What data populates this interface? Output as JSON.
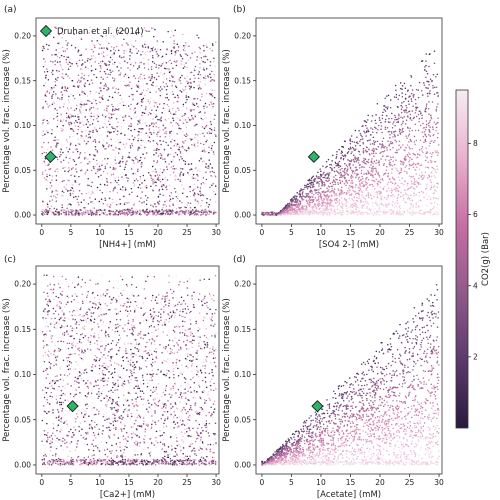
{
  "legend": {
    "label": "Druhan et al. (2014)",
    "marker_color": "#2db36a"
  },
  "colorbar": {
    "label": "CO2(g) (Bar)",
    "ticks": [
      2,
      4,
      6,
      8
    ],
    "range": [
      0,
      9.5
    ],
    "colormap": [
      "#2b1a3d",
      "#5b3a6b",
      "#8f5a8a",
      "#c56fa3",
      "#e9b2cf",
      "#f7ecf2"
    ]
  },
  "chart_data": [
    {
      "type": "scatter",
      "panel": "(a)",
      "xlabel": "[NH4+] (mM)",
      "ylabel": "Percentage vol. frac. increase (%)",
      "xlim": [
        -1,
        30.5
      ],
      "ylim": [
        -0.01,
        0.22
      ],
      "xticks": [
        0,
        5,
        10,
        15,
        20,
        25,
        30
      ],
      "yticks": [
        "0.00",
        "0.05",
        "0.10",
        "0.15",
        "0.20"
      ],
      "pattern": "uniform",
      "reference_point": {
        "x": 1.5,
        "y": 0.065,
        "name": "Druhan et al. (2014)"
      }
    },
    {
      "type": "scatter",
      "panel": "(b)",
      "xlabel": "[SO4 2-] (mM)",
      "ylabel": "Percentage vol. frac. increase (%)",
      "xlim": [
        -1,
        30.5
      ],
      "ylim": [
        -0.01,
        0.22
      ],
      "xticks": [
        0,
        5,
        10,
        15,
        20,
        25,
        30
      ],
      "yticks": [
        "0.00",
        "0.05",
        "0.10",
        "0.15",
        "0.20"
      ],
      "pattern": "wedge",
      "wedge_start": 2.5,
      "wedge_slope": 0.0073,
      "reference_point": {
        "x": 8.8,
        "y": 0.065,
        "name": "Druhan et al. (2014)"
      }
    },
    {
      "type": "scatter",
      "panel": "(c)",
      "xlabel": "[Ca2+] (mM)",
      "ylabel": "Percentage vol. frac. increase (%)",
      "xlim": [
        -1,
        30.5
      ],
      "ylim": [
        -0.01,
        0.22
      ],
      "xticks": [
        0,
        5,
        10,
        15,
        20,
        25,
        30
      ],
      "yticks": [
        "0.00",
        "0.05",
        "0.10",
        "0.15",
        "0.20"
      ],
      "pattern": "uniform",
      "reference_point": {
        "x": 5.3,
        "y": 0.065,
        "name": "Druhan et al. (2014)"
      }
    },
    {
      "type": "scatter",
      "panel": "(d)",
      "xlabel": "[Acetate] (mM)",
      "ylabel": "Percentage vol. frac. increase (%)",
      "xlim": [
        -1,
        30.5
      ],
      "ylim": [
        -0.01,
        0.22
      ],
      "xticks": [
        0,
        5,
        10,
        15,
        20,
        25,
        30
      ],
      "yticks": [
        "0.00",
        "0.05",
        "0.10",
        "0.15",
        "0.20"
      ],
      "pattern": "wedge",
      "wedge_start": 0.0,
      "wedge_slope": 0.0068,
      "reference_point": {
        "x": 9.4,
        "y": 0.065,
        "name": "Druhan et al. (2014)"
      }
    }
  ]
}
